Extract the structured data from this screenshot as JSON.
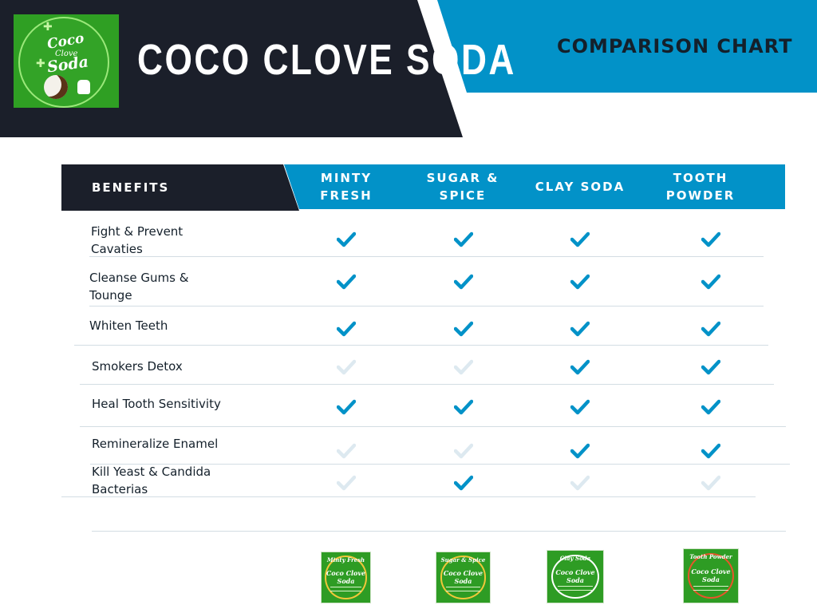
{
  "header": {
    "brand_title": "COCO CLOVE SODA",
    "chart_title": "COMPARISON CHART",
    "logo": {
      "line1": "Coco",
      "line2": "Clove",
      "line3": "Soda",
      "plus_symbol": "✚"
    }
  },
  "table": {
    "header_benefits": "BENEFITS",
    "columns": [
      {
        "line1": "MINTY",
        "line2": "FRESH"
      },
      {
        "line1": "SUGAR &",
        "line2": "SPICE"
      },
      {
        "line1": "CLAY SODA",
        "line2": ""
      },
      {
        "line1": "TOOTH",
        "line2": "POWDER"
      }
    ],
    "rows": [
      {
        "line1": "Fight & Prevent",
        "line2": "Cavaties",
        "checks": [
          true,
          true,
          true,
          true
        ]
      },
      {
        "line1": "Cleanse Gums &",
        "line2": "Tounge",
        "checks": [
          true,
          true,
          true,
          true
        ]
      },
      {
        "line1": "Whiten Teeth",
        "line2": "",
        "checks": [
          true,
          true,
          true,
          true
        ]
      },
      {
        "line1": "Smokers Detox",
        "line2": "",
        "checks": [
          false,
          false,
          true,
          true
        ]
      },
      {
        "line1": "Heal Tooth Sensitivity",
        "line2": "",
        "checks": [
          true,
          true,
          true,
          true
        ]
      },
      {
        "line1": "Remineralize Enamel",
        "line2": "",
        "checks": [
          false,
          false,
          true,
          true
        ]
      },
      {
        "line1": "Kill Yeast & Candida",
        "line2": "Bacterias",
        "checks": [
          false,
          true,
          false,
          false
        ]
      }
    ]
  },
  "products": [
    {
      "name": "Minty Fresh",
      "logo": "Coco Clove Soda"
    },
    {
      "name": "Sugar & Spice",
      "logo": "Coco Clove Soda"
    },
    {
      "name": "Clay Soda",
      "logo": "Coco Clove Soda"
    },
    {
      "name": "Tooth Powder",
      "logo": "Coco Clove Soda"
    }
  ],
  "colors": {
    "dark_navy": "#1b1f2a",
    "accent_blue": "#0292c8",
    "check_active": "#0292c8",
    "check_inactive": "#dde9f0",
    "brand_green": "#2f9f23"
  },
  "icons": {
    "included": "checkmark-icon",
    "not_included": "checkmark-faded-icon"
  }
}
